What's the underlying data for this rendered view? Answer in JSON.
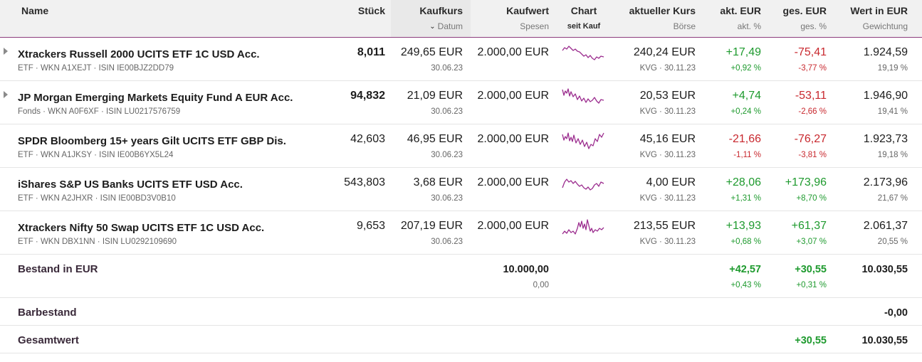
{
  "header": {
    "name": "Name",
    "stueck": "Stück",
    "kaufkurs": "Kaufkurs",
    "datum": "Datum",
    "kaufwert": "Kaufwert",
    "spesen": "Spesen",
    "chart": "Chart",
    "seit_kauf": "seit Kauf",
    "aktueller_kurs": "aktueller Kurs",
    "boerse": "Börse",
    "akt_eur": "akt. EUR",
    "akt_pct": "akt. %",
    "ges_eur": "ges. EUR",
    "ges_pct": "ges. %",
    "wert": "Wert in EUR",
    "gewichtung": "Gewichtung"
  },
  "colors": {
    "positive": "#1e9a2e",
    "negative": "#c8282e",
    "accent": "#8c3c7c",
    "sparkline": "#9b2c8e"
  },
  "rows": [
    {
      "name": "Xtrackers Russell 2000 UCITS ETF 1C USD Acc.",
      "meta": "ETF · WKN A1XEJT · ISIN IE00BJZ2DD79",
      "expandable": true,
      "stueck_bold": true,
      "stueck": "8,011",
      "kaufkurs": "249,65 EUR",
      "datum": "30.06.23",
      "kaufwert": "2.000,00 EUR",
      "kurs": "240,24 EUR",
      "boerse": "KVG · 30.11.23",
      "akt_eur": "+17,49",
      "akt_pct": "+0,92 %",
      "ges_eur": "-75,41",
      "ges_pct": "-3,77 %",
      "wert": "1.924,59",
      "gewichtung": "19,19 %"
    },
    {
      "name": "JP Morgan Emerging Markets Equity Fund A EUR Acc.",
      "meta": "Fonds · WKN A0F6XF · ISIN LU0217576759",
      "expandable": true,
      "stueck_bold": true,
      "stueck": "94,832",
      "kaufkurs": "21,09 EUR",
      "datum": "30.06.23",
      "kaufwert": "2.000,00 EUR",
      "kurs": "20,53 EUR",
      "boerse": "KVG · 30.11.23",
      "akt_eur": "+4,74",
      "akt_pct": "+0,24 %",
      "ges_eur": "-53,11",
      "ges_pct": "-2,66 %",
      "wert": "1.946,90",
      "gewichtung": "19,41 %"
    },
    {
      "name": "SPDR Bloomberg 15+ years Gilt UCITS ETF GBP Dis.",
      "meta": "ETF · WKN A1JKSY · ISIN IE00B6YX5L24",
      "expandable": false,
      "stueck_bold": false,
      "stueck": "42,603",
      "kaufkurs": "46,95 EUR",
      "datum": "30.06.23",
      "kaufwert": "2.000,00 EUR",
      "kurs": "45,16 EUR",
      "boerse": "KVG · 30.11.23",
      "akt_eur": "-21,66",
      "akt_pct": "-1,11 %",
      "ges_eur": "-76,27",
      "ges_pct": "-3,81 %",
      "wert": "1.923,73",
      "gewichtung": "19,18 %"
    },
    {
      "name": "iShares S&P US Banks UCITS ETF USD Acc.",
      "meta": "ETF · WKN A2JHXR · ISIN IE00BD3V0B10",
      "expandable": false,
      "stueck_bold": false,
      "stueck": "543,803",
      "kaufkurs": "3,68 EUR",
      "datum": "30.06.23",
      "kaufwert": "2.000,00 EUR",
      "kurs": "4,00 EUR",
      "boerse": "KVG · 30.11.23",
      "akt_eur": "+28,06",
      "akt_pct": "+1,31 %",
      "ges_eur": "+173,96",
      "ges_pct": "+8,70 %",
      "wert": "2.173,96",
      "gewichtung": "21,67 %"
    },
    {
      "name": "Xtrackers Nifty 50 Swap UCITS ETF 1C USD Acc.",
      "meta": "ETF · WKN DBX1NN · ISIN LU0292109690",
      "expandable": false,
      "stueck_bold": false,
      "stueck": "9,653",
      "kaufkurs": "207,19 EUR",
      "datum": "30.06.23",
      "kaufwert": "2.000,00 EUR",
      "kurs": "213,55 EUR",
      "boerse": "KVG · 30.11.23",
      "akt_eur": "+13,93",
      "akt_pct": "+0,68 %",
      "ges_eur": "+61,37",
      "ges_pct": "+3,07 %",
      "wert": "2.061,37",
      "gewichtung": "20,55 %"
    }
  ],
  "bestand": {
    "label": "Bestand in EUR",
    "kaufwert": "10.000,00",
    "spesen": "0,00",
    "akt_eur": "+42,57",
    "akt_pct": "+0,43 %",
    "ges_eur": "+30,55",
    "ges_pct": "+0,31 %",
    "wert": "10.030,55"
  },
  "barbestand": {
    "label": "Barbestand",
    "wert": "-0,00"
  },
  "gesamtwert": {
    "label": "Gesamtwert",
    "ges_eur": "+30,55",
    "wert": "10.030,55"
  }
}
